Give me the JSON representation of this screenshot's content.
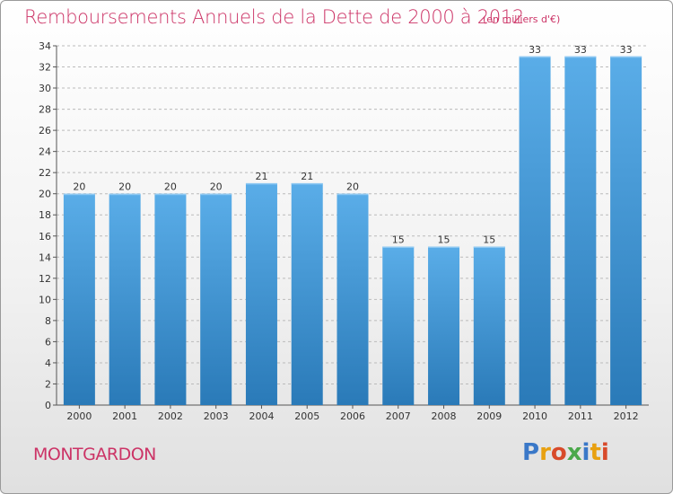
{
  "header": {
    "title": "Remboursements Annuels de la Dette de 2000 à 2012",
    "unit": "(en milliers d'€)"
  },
  "footer": {
    "commune": "MONTGARDON",
    "logo_text": "Proxiti"
  },
  "colors": {
    "title": "#cc3366",
    "bar_top": "#5aade8",
    "bar_bottom": "#2a7ab8",
    "grid": "#bbbbbb"
  },
  "chart_data": {
    "type": "bar",
    "title": "Remboursements Annuels de la Dette de 2000 à 2012",
    "subtitle": "(en milliers d'€)",
    "xlabel": "",
    "ylabel": "",
    "categories": [
      "2000",
      "2001",
      "2002",
      "2003",
      "2004",
      "2005",
      "2006",
      "2007",
      "2008",
      "2009",
      "2010",
      "2011",
      "2012"
    ],
    "values": [
      20,
      20,
      20,
      20,
      21,
      21,
      20,
      15,
      15,
      15,
      33,
      33,
      33
    ],
    "ylim": [
      0,
      34
    ],
    "yticks": [
      0,
      2,
      4,
      6,
      8,
      10,
      12,
      14,
      16,
      18,
      20,
      22,
      24,
      26,
      28,
      30,
      32,
      34
    ],
    "grid": true,
    "grid_style": "dashed-horizontal",
    "data_labels": true,
    "legend": "none"
  }
}
